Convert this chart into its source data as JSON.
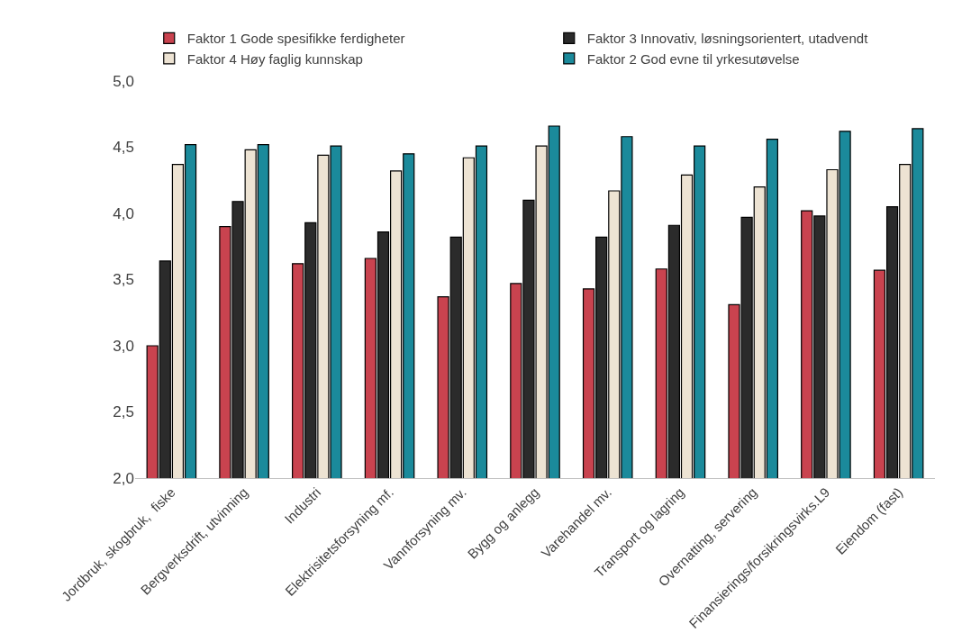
{
  "chart_data": {
    "type": "bar",
    "categories": [
      "Jordbruk, skogbruk,  fiske",
      "Bergverksdrift, utvinning",
      "Industri",
      "Elektrisitetsforsyning mf.",
      "Vannforsyning mv.",
      "Bygg og anlegg",
      "Varehandel mv.",
      "Transport og lagring",
      "Overnatting, servering",
      "Finansierings/forsikringsvirks.L9",
      "Eiendom (fast)"
    ],
    "series": [
      {
        "name": "Faktor 1 Gode spesifikke ferdigheter",
        "color": "#c9434f",
        "values": [
          3.0,
          3.9,
          3.62,
          3.66,
          3.37,
          3.47,
          3.43,
          3.58,
          3.31,
          4.02,
          3.57
        ]
      },
      {
        "name": "Faktor 3 Innovativ, løsningsorientert, utadvendt",
        "color": "#2b2b2b",
        "values": [
          3.64,
          4.09,
          3.93,
          3.86,
          3.82,
          4.1,
          3.82,
          3.91,
          3.97,
          3.98,
          4.05
        ]
      },
      {
        "name": "Faktor 4 Høy faglig kunnskap",
        "color": "#ede3d3",
        "values": [
          4.37,
          4.48,
          4.44,
          4.32,
          4.42,
          4.51,
          4.17,
          4.29,
          4.2,
          4.33,
          4.37
        ]
      },
      {
        "name": "Faktor 2 God evne til yrkesutøvelse",
        "color": "#1b8a9b",
        "values": [
          4.52,
          4.52,
          4.51,
          4.45,
          4.51,
          4.66,
          4.58,
          4.51,
          4.56,
          4.62,
          4.64
        ]
      }
    ],
    "ylim": [
      2.0,
      5.0
    ],
    "yticks": [
      {
        "value": 2.0,
        "label": "2,0"
      },
      {
        "value": 2.5,
        "label": "2,5"
      },
      {
        "value": 3.0,
        "label": "3,0"
      },
      {
        "value": 3.5,
        "label": "3,5"
      },
      {
        "value": 4.0,
        "label": "4,0"
      },
      {
        "value": 4.5,
        "label": "4,5"
      },
      {
        "value": 5.0,
        "label": "5,0"
      }
    ],
    "legend": "top"
  }
}
